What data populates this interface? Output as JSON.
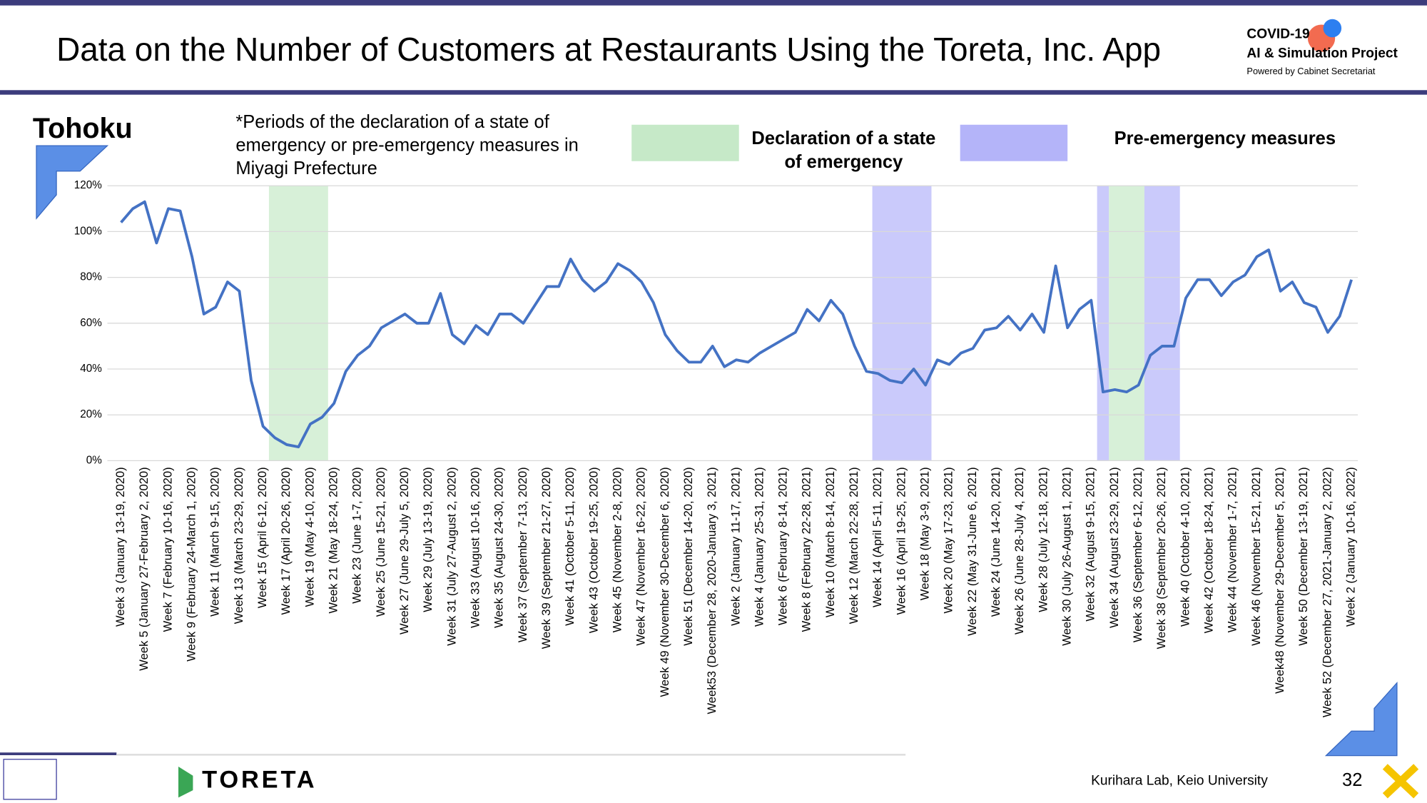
{
  "header": {
    "title": "Data on the Number of Customers at Restaurants Using the Toreta, Inc. App",
    "logo": [
      "COVID-19",
      "AI & Simulation Project",
      "Powered by Cabinet Secretariat"
    ]
  },
  "footer": {
    "brand": "TORETA",
    "credit": "Kurihara Lab, Keio University",
    "page": "32"
  },
  "chart_data": {
    "type": "line",
    "title": "Tohoku",
    "note": [
      "*Periods of the declaration of a state of",
      "emergency or pre-emergency measures in",
      "Miyagi Prefecture"
    ],
    "legend": [
      {
        "name": [
          "Declaration of a state",
          "of emergency"
        ],
        "color": "#c6e9c8"
      },
      {
        "name": [
          "Pre-emergency measures"
        ],
        "color": "#b4b4f9"
      }
    ],
    "periods": [
      {
        "legend": 0,
        "from": 12.5,
        "to": 17.5
      },
      {
        "legend": 1,
        "from": 63.5,
        "to": 68.5
      },
      {
        "legend": 1,
        "from": 82.5,
        "to": 83.5
      },
      {
        "legend": 0,
        "from": 83.5,
        "to": 86.5
      },
      {
        "legend": 1,
        "from": 86.5,
        "to": 89.5
      }
    ],
    "categories": [
      "Week 3 (January 13-19, 2020)",
      null,
      "Week 5 (January 27-February 2, 2020)",
      null,
      "Week 7 (February 10-16, 2020)",
      null,
      "Week 9 (February 24-March 1, 2020)",
      null,
      "Week 11 (March 9-15, 2020)",
      null,
      "Week 13 (March 23-29, 2020)",
      null,
      "Week 15 (April 6-12, 2020)",
      null,
      "Week 17 (April 20-26, 2020)",
      null,
      "Week 19 (May 4-10, 2020)",
      null,
      "Week 21 (May 18-24, 2020)",
      null,
      "Week 23 (June 1-7, 2020)",
      null,
      "Week 25 (June 15-21, 2020)",
      null,
      "Week 27 (June 29-July 5, 2020)",
      null,
      "Week 29 (July 13-19, 2020)",
      null,
      "Week 31 (July 27-August 2, 2020)",
      null,
      "Week 33 (August 10-16, 2020)",
      null,
      "Week 35 (August 24-30, 2020)",
      null,
      "Week 37 (September 7-13, 2020)",
      null,
      "Week 39 (September 21-27, 2020)",
      null,
      "Week 41 (October 5-11, 2020)",
      null,
      "Week 43 (October 19-25, 2020)",
      null,
      "Week 45 (November 2-8, 2020)",
      null,
      "Week 47 (November 16-22, 2020)",
      null,
      "Week 49 (November 30-December 6, 2020)",
      null,
      "Week 51 (December 14-20, 2020)",
      null,
      "Week53 (December 28, 2020-January 3, 2021)",
      null,
      "Week 2 (January 11-17, 2021)",
      null,
      "Week 4 (January 25-31, 2021)",
      null,
      "Week 6 (February 8-14, 2021)",
      null,
      "Week 8 (February 22-28, 2021)",
      null,
      "Week 10 (March 8-14, 2021)",
      null,
      "Week 12 (March 22-28, 2021)",
      null,
      "Week 14 (April 5-11, 2021)",
      null,
      "Week 16 (April 19-25, 2021)",
      null,
      "Week 18 (May 3-9, 2021)",
      null,
      "Week 20 (May 17-23, 2021)",
      null,
      "Week 22 (May 31-June 6, 2021)",
      null,
      "Week 24 (June 14-20, 2021)",
      null,
      "Week 26 (June 28-July 4, 2021)",
      null,
      "Week 28 (July 12-18, 2021)",
      null,
      "Week 30 (July 26-August 1, 2021)",
      null,
      "Week 32 (August 9-15, 2021)",
      null,
      "Week 34 (August 23-29, 2021)",
      null,
      "Week 36 (September 6-12, 2021)",
      null,
      "Week 38 (September 20-26, 2021)",
      null,
      "Week 40 (October 4-10, 2021)",
      null,
      "Week 42 (October 18-24, 2021)",
      null,
      "Week 44 (November 1-7, 2021)",
      null,
      "Week 46 (November 15-21, 2021)",
      null,
      "Week48 (November 29-December 5, 2021)",
      null,
      "Week 50 (December 13-19, 2021)",
      null,
      "Week 52 (December 27, 2021-January 2, 2022)",
      null,
      "Week 2 (January 10-16, 2022)"
    ],
    "values": [
      104,
      110,
      113,
      95,
      110,
      109,
      89,
      64,
      67,
      78,
      74,
      35,
      15,
      10,
      7,
      6,
      16,
      19,
      25,
      39,
      46,
      50,
      58,
      61,
      64,
      60,
      60,
      73,
      55,
      51,
      59,
      55,
      64,
      64,
      60,
      68,
      76,
      76,
      88,
      79,
      74,
      78,
      86,
      83,
      78,
      69,
      55,
      48,
      43,
      43,
      50,
      41,
      44,
      43,
      47,
      50,
      53,
      56,
      66,
      61,
      70,
      64,
      50,
      39,
      38,
      35,
      34,
      40,
      33,
      44,
      42,
      47,
      49,
      57,
      58,
      63,
      57,
      64,
      56,
      85,
      58,
      66,
      70,
      30,
      31,
      30,
      33,
      46,
      50,
      50,
      71,
      79,
      79,
      72,
      78,
      81,
      89,
      92,
      74,
      78,
      69,
      67,
      56,
      63,
      79
    ],
    "color": "#4472c4",
    "ylim": [
      0,
      120
    ],
    "yticks": [
      {
        "value": 0,
        "label": "0%"
      },
      {
        "value": 20,
        "label": "20%"
      },
      {
        "value": 40,
        "label": "40%"
      },
      {
        "value": 60,
        "label": "60%"
      },
      {
        "value": 80,
        "label": "80%"
      },
      {
        "value": 100,
        "label": "100%"
      },
      {
        "value": 120,
        "label": "120%"
      }
    ],
    "grid": true
  }
}
